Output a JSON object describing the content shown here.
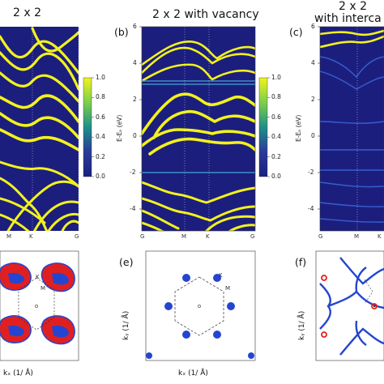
{
  "panels": {
    "a": {
      "title": "2 x 2",
      "x_ticks": [
        "M",
        "K",
        "G"
      ]
    },
    "b": {
      "label": "(b)",
      "title": "2 x 2 with vacancy",
      "y_axis_label": "E-Eₔ (eV)",
      "y_ticks": [
        "6",
        "4",
        "2",
        "0",
        "-2",
        "-4"
      ],
      "x_ticks": [
        "G",
        "M",
        "K",
        "G"
      ]
    },
    "c": {
      "label": "(c)",
      "title_line1": "2 x 2",
      "title_line2": "with interca",
      "y_axis_label": "E-Eₔ (eV)",
      "y_ticks": [
        "6",
        "4",
        "2",
        "0",
        "-2",
        "-4"
      ],
      "x_ticks": [
        "G",
        "M",
        "K"
      ]
    },
    "d": {
      "x_axis_label": "kₓ (1/ Å)",
      "labels": [
        "M",
        "K"
      ]
    },
    "e": {
      "label": "(e)",
      "x_axis_label": "kₓ (1/ Å)",
      "y_axis_label": "kᵧ (1/ Å)",
      "labels": [
        "M",
        "K"
      ]
    },
    "f": {
      "label": "(f)",
      "y_axis_label": "kᵧ (1/ Å)"
    }
  },
  "colorbars": {
    "left": {
      "ticks": [
        "1.0",
        "0.8",
        "0.6",
        "0.4",
        "0.2",
        "0.0"
      ]
    },
    "right": {
      "ticks": [
        "1.0",
        "0.8",
        "0.6",
        "0.4",
        "0.2",
        "0.0"
      ]
    }
  },
  "colors": {
    "band": "#f2f21c",
    "background_dark": "#1c1e7e",
    "pocket_blue": "#2545d0",
    "pocket_red": "#e02020"
  }
}
